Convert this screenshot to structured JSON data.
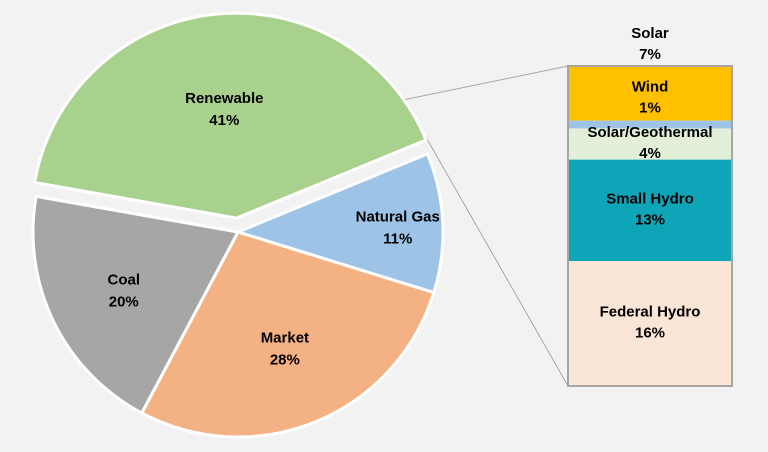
{
  "chart_data": {
    "type": "pie",
    "variant": "bar-of-pie",
    "title": "",
    "slices": [
      {
        "name": "Renewable",
        "value": 41,
        "label": "41%",
        "color": "#a9d18e",
        "exploded": true
      },
      {
        "name": "Natural Gas",
        "value": 11,
        "label": "11%",
        "color": "#9dc3e6",
        "exploded": false
      },
      {
        "name": "Market",
        "value": 28,
        "label": "28%",
        "color": "#f4b183",
        "exploded": false
      },
      {
        "name": "Coal",
        "value": 20,
        "label": "20%",
        "color": "#a6a6a6",
        "exploded": false
      }
    ],
    "breakdown_of": "Renewable",
    "breakdown": [
      {
        "name": "Solar",
        "value": 7,
        "label": "7%",
        "color": "#ffc000"
      },
      {
        "name": "Wind",
        "value": 1,
        "label": "1%",
        "color": "#9dc3e6"
      },
      {
        "name": "Solar/Geothermal",
        "value": 4,
        "label": "4%",
        "color": "#e2f0d9"
      },
      {
        "name": "Small Hydro",
        "value": 13,
        "label": "13%",
        "color": "#0ea5b8"
      },
      {
        "name": "Federal Hydro",
        "value": 16,
        "label": "16%",
        "color": "#fbe5d6"
      }
    ],
    "background": "#f2f2f2",
    "border_color": "#a6a6a6"
  }
}
